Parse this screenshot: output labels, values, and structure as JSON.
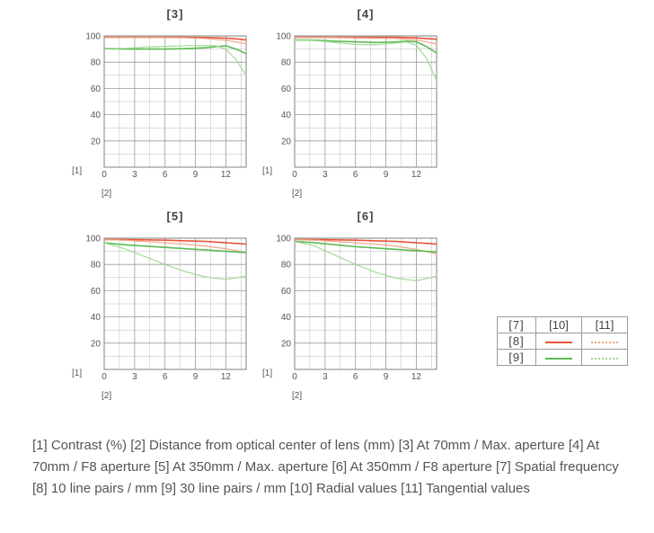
{
  "chart_data": [
    {
      "type": "line",
      "title": "[3]",
      "ylabel": "[1]",
      "xlabel": "[2]",
      "xlim": [
        0,
        14
      ],
      "ylim": [
        0,
        100
      ],
      "xticks": [
        0,
        3,
        6,
        9,
        12
      ],
      "yticks": [
        20,
        40,
        60,
        80,
        100
      ],
      "grid": true,
      "series": [
        {
          "legend": "[10] x [8]",
          "style": "radial-10",
          "x": [
            0,
            2,
            4,
            6,
            8,
            10,
            11,
            12,
            13,
            14
          ],
          "y": [
            99,
            99,
            99,
            99,
            99,
            98.8,
            98.6,
            98.3,
            97.8,
            97
          ]
        },
        {
          "legend": "[11] x [8]",
          "style": "tangential-10",
          "x": [
            0,
            2,
            4,
            6,
            8,
            10,
            11,
            12,
            13,
            14
          ],
          "y": [
            99,
            99,
            99,
            98.8,
            98.6,
            98,
            97.5,
            96.8,
            95.5,
            94
          ]
        },
        {
          "legend": "[10] x [9]",
          "style": "radial-30",
          "x": [
            0,
            2,
            4,
            6,
            8,
            10,
            11,
            12,
            13,
            14
          ],
          "y": [
            90.5,
            90,
            90,
            90,
            90.3,
            91,
            91.8,
            92.5,
            90,
            86.5
          ]
        },
        {
          "legend": "[11] x [9]",
          "style": "tangential-30",
          "x": [
            0,
            2,
            4,
            6,
            8,
            10,
            11,
            12,
            13,
            14
          ],
          "y": [
            90.5,
            90.5,
            91.5,
            92,
            92.5,
            92.8,
            92.5,
            90,
            82,
            70
          ]
        }
      ]
    },
    {
      "type": "line",
      "title": "[4]",
      "ylabel": "[1]",
      "xlabel": "[2]",
      "xlim": [
        0,
        14
      ],
      "ylim": [
        0,
        100
      ],
      "xticks": [
        0,
        3,
        6,
        9,
        12
      ],
      "yticks": [
        20,
        40,
        60,
        80,
        100
      ],
      "grid": true,
      "series": [
        {
          "legend": "[10] x [8]",
          "style": "radial-10",
          "x": [
            0,
            2,
            4,
            6,
            8,
            10,
            11,
            12,
            13,
            14
          ],
          "y": [
            99,
            99,
            99,
            99,
            99,
            99,
            98.8,
            98.5,
            98,
            97.5
          ]
        },
        {
          "legend": "[11] x [8]",
          "style": "tangential-10",
          "x": [
            0,
            2,
            4,
            6,
            8,
            10,
            11,
            12,
            13,
            14
          ],
          "y": [
            99,
            99,
            98.8,
            98.5,
            98.3,
            98,
            97.5,
            97,
            95.5,
            94
          ]
        },
        {
          "legend": "[10] x [9]",
          "style": "radial-30",
          "x": [
            0,
            2,
            4,
            6,
            8,
            10,
            11,
            12,
            13,
            14
          ],
          "y": [
            97,
            96.8,
            96,
            95.5,
            95,
            95.5,
            96,
            95.5,
            92,
            87
          ]
        },
        {
          "legend": "[11] x [9]",
          "style": "tangential-30",
          "x": [
            0,
            2,
            4,
            6,
            8,
            10,
            11,
            12,
            13,
            14
          ],
          "y": [
            97,
            96.5,
            95,
            93.5,
            93.3,
            94.5,
            95.5,
            93,
            83,
            66
          ]
        }
      ]
    },
    {
      "type": "line",
      "title": "[5]",
      "ylabel": "[1]",
      "xlabel": "[2]",
      "xlim": [
        0,
        14
      ],
      "ylim": [
        0,
        100
      ],
      "xticks": [
        0,
        3,
        6,
        9,
        12
      ],
      "yticks": [
        20,
        40,
        60,
        80,
        100
      ],
      "grid": true,
      "series": [
        {
          "legend": "[10] x [8]",
          "style": "radial-10",
          "x": [
            0,
            2,
            4,
            6,
            8,
            10,
            12,
            14
          ],
          "y": [
            99,
            99,
            98.8,
            98.5,
            98,
            97.5,
            96.5,
            95.5
          ]
        },
        {
          "legend": "[11] x [8]",
          "style": "tangential-10",
          "x": [
            0,
            2,
            4,
            6,
            8,
            10,
            12,
            14
          ],
          "y": [
            99,
            98.5,
            97.5,
            96.5,
            95.5,
            94,
            92,
            89
          ]
        },
        {
          "legend": "[10] x [9]",
          "style": "radial-30",
          "x": [
            0,
            2,
            4,
            6,
            8,
            10,
            12,
            14
          ],
          "y": [
            96.5,
            95,
            94,
            93,
            92,
            91,
            90,
            89
          ]
        },
        {
          "legend": "[11] x [9]",
          "style": "tangential-30",
          "x": [
            0,
            2,
            4,
            6,
            8,
            10,
            12,
            14
          ],
          "y": [
            96.5,
            92,
            86,
            80,
            74.5,
            70.5,
            68.5,
            71
          ]
        }
      ]
    },
    {
      "type": "line",
      "title": "[6]",
      "ylabel": "[1]",
      "xlabel": "[2]",
      "xlim": [
        0,
        14
      ],
      "ylim": [
        0,
        100
      ],
      "xticks": [
        0,
        3,
        6,
        9,
        12
      ],
      "yticks": [
        20,
        40,
        60,
        80,
        100
      ],
      "grid": true,
      "series": [
        {
          "legend": "[10] x [8]",
          "style": "radial-10",
          "x": [
            0,
            2,
            4,
            6,
            8,
            10,
            12,
            14
          ],
          "y": [
            99,
            99,
            98.8,
            98.5,
            98,
            97.5,
            96.5,
            95.5
          ]
        },
        {
          "legend": "[11] x [8]",
          "style": "tangential-10",
          "x": [
            0,
            2,
            4,
            6,
            8,
            10,
            12,
            14
          ],
          "y": [
            99,
            98.5,
            97.5,
            96.5,
            95.5,
            94,
            91.5,
            88
          ]
        },
        {
          "legend": "[10] x [9]",
          "style": "radial-30",
          "x": [
            0,
            2,
            4,
            6,
            8,
            10,
            12,
            14
          ],
          "y": [
            97.5,
            96.5,
            95,
            93.5,
            92.5,
            91.5,
            90.5,
            89.5
          ]
        },
        {
          "legend": "[11] x [9]",
          "style": "tangential-30",
          "x": [
            0,
            2,
            4,
            6,
            8,
            10,
            12,
            14
          ],
          "y": [
            97.5,
            94,
            87,
            80,
            74,
            69.5,
            67.5,
            71
          ]
        }
      ]
    }
  ],
  "styles": {
    "radial-10": {
      "color": "#e8543a",
      "width": 1.6,
      "opacity": 1
    },
    "tangential-10": {
      "color": "#f0a282",
      "width": 1.3,
      "opacity": 0.9
    },
    "radial-30": {
      "color": "#5cbb52",
      "width": 1.6,
      "opacity": 1
    },
    "tangential-30": {
      "color": "#9fd992",
      "width": 1.3,
      "opacity": 0.9
    }
  },
  "colors": {
    "grid": "#9a9a9a",
    "frame": "#808080"
  },
  "legend": {
    "header": [
      "[7]",
      "[10]",
      "[11]"
    ],
    "rows": [
      "[8]",
      "[9]"
    ]
  },
  "caption": "[1] Contrast (%)  [2] Distance from optical center of lens (mm)  [3] At 70mm / Max. aperture  [4] At 70mm / F8 aperture  [5] At 350mm / Max. aperture  [6] At 350mm / F8 aperture  [7] Spatial frequency  [8] 10 line pairs / mm  [9] 30 line pairs / mm  [10] Radial values  [11] Tangential values"
}
